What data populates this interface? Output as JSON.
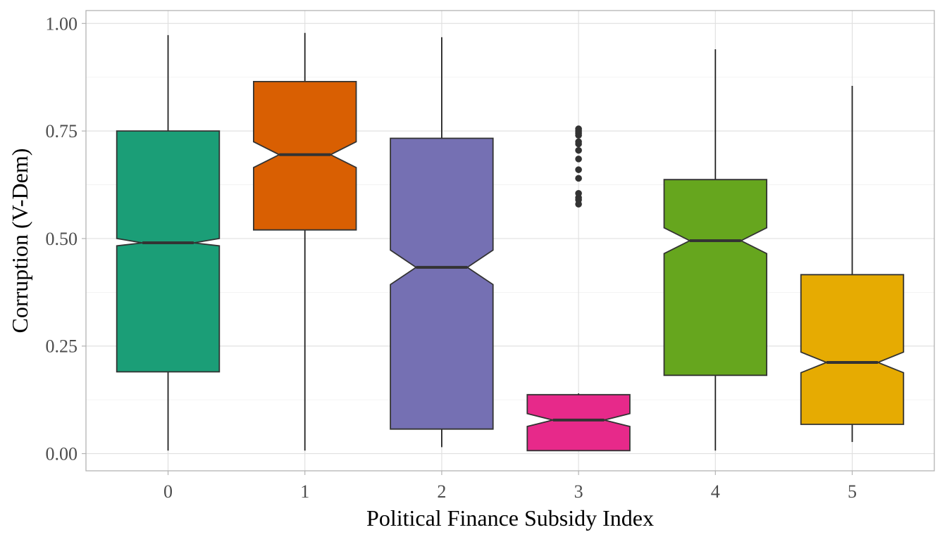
{
  "chart_data": {
    "type": "boxplot",
    "notched": true,
    "xlabel": "Political Finance Subsidy Index",
    "ylabel": "Corruption (V-Dem)",
    "ylim": [
      -0.04,
      1.03
    ],
    "yticks": [
      0.0,
      0.25,
      0.5,
      0.75,
      1.0
    ],
    "ytick_labels": [
      "0.00",
      "0.25",
      "0.50",
      "0.75",
      "1.00"
    ],
    "grid": true,
    "legend": "none",
    "categories": [
      "0",
      "1",
      "2",
      "3",
      "4",
      "5"
    ],
    "boxes": [
      {
        "category": "0",
        "color": "#1b9e77",
        "whisker_low": 0.007,
        "q1": 0.19,
        "median": 0.49,
        "q3": 0.75,
        "whisker_high": 0.973,
        "notch_low": 0.483,
        "notch_high": 0.5,
        "outliers": []
      },
      {
        "category": "1",
        "color": "#d95f02",
        "whisker_low": 0.007,
        "q1": 0.52,
        "median": 0.695,
        "q3": 0.865,
        "whisker_high": 0.978,
        "notch_low": 0.665,
        "notch_high": 0.725,
        "outliers": []
      },
      {
        "category": "2",
        "color": "#7570b3",
        "whisker_low": 0.015,
        "q1": 0.057,
        "median": 0.433,
        "q3": 0.733,
        "whisker_high": 0.968,
        "notch_low": 0.393,
        "notch_high": 0.473,
        "outliers": []
      },
      {
        "category": "3",
        "color": "#e7298a",
        "whisker_low": 0.007,
        "q1": 0.007,
        "median": 0.078,
        "q3": 0.137,
        "whisker_high": 0.14,
        "notch_low": 0.063,
        "notch_high": 0.093,
        "outliers": [
          0.58,
          0.59,
          0.595,
          0.605,
          0.64,
          0.66,
          0.685,
          0.705,
          0.72,
          0.725,
          0.74,
          0.745,
          0.75,
          0.755
        ]
      },
      {
        "category": "4",
        "color": "#66a61e",
        "whisker_low": 0.007,
        "q1": 0.182,
        "median": 0.495,
        "q3": 0.637,
        "whisker_high": 0.94,
        "notch_low": 0.465,
        "notch_high": 0.525,
        "outliers": []
      },
      {
        "category": "5",
        "color": "#e6ab02",
        "whisker_low": 0.027,
        "q1": 0.068,
        "median": 0.212,
        "q3": 0.416,
        "whisker_high": 0.855,
        "notch_low": 0.188,
        "notch_high": 0.236,
        "outliers": []
      }
    ]
  }
}
